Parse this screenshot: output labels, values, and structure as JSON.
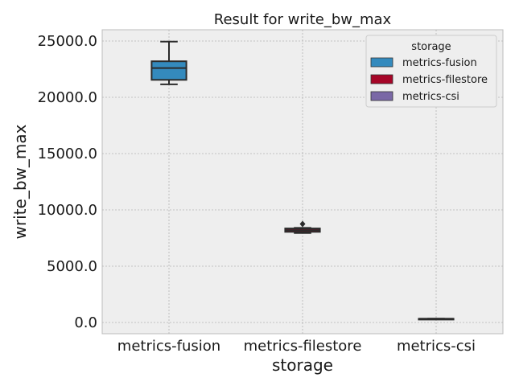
{
  "chart_data": {
    "type": "box",
    "title": "Result for write_bw_max",
    "xlabel": "storage",
    "ylabel": "write_bw_max",
    "categories": [
      "metrics-fusion",
      "metrics-filestore",
      "metrics-csi"
    ],
    "ylim": [
      -1000,
      26000
    ],
    "yticks": [
      0,
      5000,
      10000,
      15000,
      20000,
      25000
    ],
    "ytick_labels": [
      "0.0",
      "5000.0",
      "10000.0",
      "15000.0",
      "20000.0",
      "25000.0"
    ],
    "grid": true,
    "legend": {
      "title": "storage",
      "placement": "top-right",
      "entries": [
        "metrics-fusion",
        "metrics-filestore",
        "metrics-csi"
      ]
    },
    "colors": {
      "metrics-fusion": "#348abd",
      "metrics-filestore": "#a60628",
      "metrics-csi": "#7a68a6",
      "background": "#eeeeee",
      "grid": "#b2b2b2",
      "edge": "#2b2b2b"
    },
    "series": [
      {
        "name": "metrics-fusion",
        "min": 21150,
        "q1": 21550,
        "median": 22600,
        "q3": 23200,
        "max": 24950,
        "outliers": []
      },
      {
        "name": "metrics-filestore",
        "min": 7950,
        "q1": 8050,
        "median": 8200,
        "q3": 8350,
        "max": 8400,
        "outliers": [
          8750
        ]
      },
      {
        "name": "metrics-csi",
        "min": 330,
        "q1": 330,
        "median": 330,
        "q3": 330,
        "max": 330,
        "outliers": []
      }
    ]
  }
}
